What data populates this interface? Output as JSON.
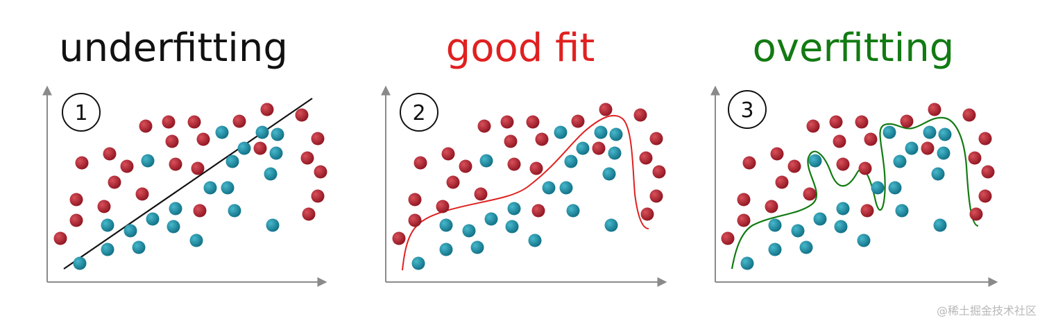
{
  "panels": [
    {
      "title": "underfitting",
      "number": "1",
      "title_color": "#111111",
      "curve_color": "#111111"
    },
    {
      "title": "good fit",
      "number": "2",
      "title_color": "#e02020",
      "curve_color": "#e02020"
    },
    {
      "title": "overfitting",
      "number": "3",
      "title_color": "#127a12",
      "curve_color": "#127a12"
    }
  ],
  "colors": {
    "class_a": "#a51c28",
    "class_b": "#1e8aa0",
    "axis": "#8a8a8a"
  },
  "watermark": "@稀土掘金技术社区"
}
